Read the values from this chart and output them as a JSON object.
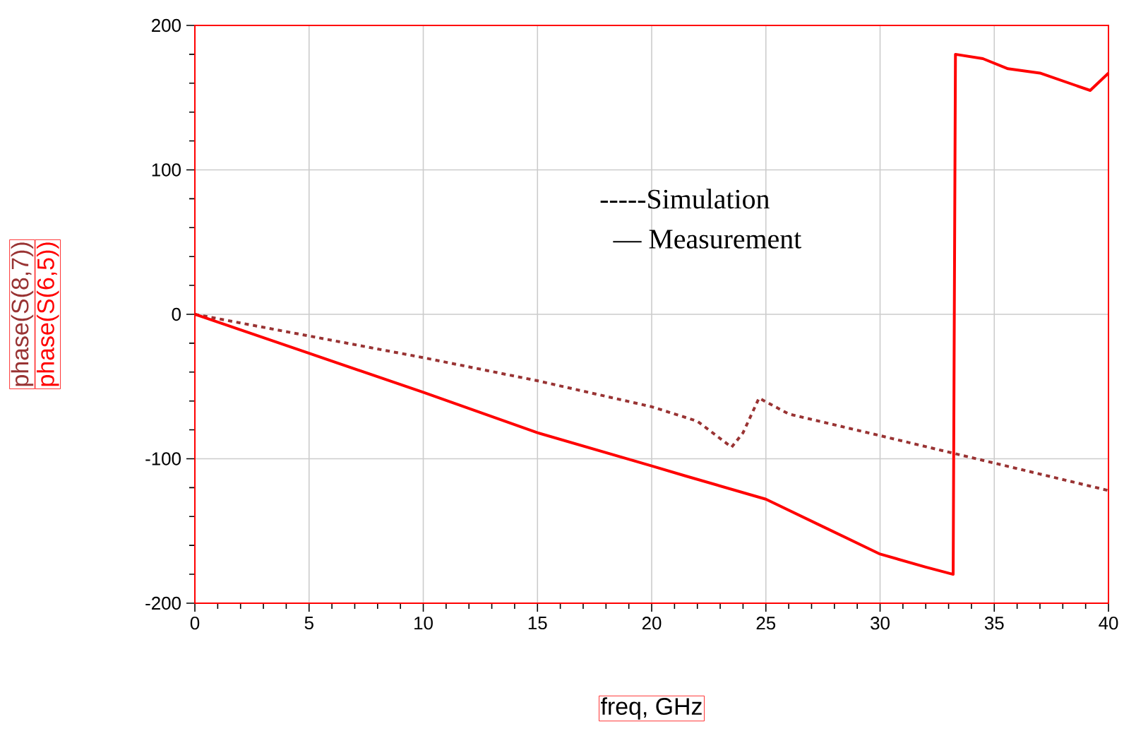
{
  "chart_data": {
    "type": "line",
    "xlabel": "freq, GHz",
    "ylabel": "phase(S(8,7))",
    "xlim": [
      0,
      40
    ],
    "xticks": [
      0,
      5,
      10,
      15,
      20,
      25,
      30,
      35,
      40
    ],
    "ylim": [
      -200,
      200
    ],
    "yticks": [
      -200,
      -100,
      0,
      100,
      200
    ],
    "grid": true,
    "series": [
      {
        "color": "#993333",
        "line_style": "dashed",
        "x": [
          0,
          5,
          10,
          15,
          20,
          22,
          23.5,
          24,
          24.7,
          26,
          30,
          35,
          40
        ],
        "values": [
          0,
          -15,
          -30,
          -46,
          -64,
          -74,
          -92,
          -82,
          -58,
          -69,
          -84,
          -103,
          -122
        ]
      },
      {
        "color": "#ff0000",
        "x": [
          0,
          5,
          10,
          15,
          20,
          21.5,
          25,
          27.5,
          30,
          32,
          33.2,
          33.3,
          34.5,
          35.6,
          37,
          39.2,
          40
        ],
        "values": [
          0,
          -27,
          -54,
          -82,
          -105,
          -112,
          -128,
          -147,
          -166,
          -175,
          -180,
          180,
          177,
          170,
          167,
          155,
          167
        ]
      }
    ],
    "annotations": [
      "-----Simulation",
      "—  Measurement",
      "phase(S(6,5))"
    ]
  }
}
